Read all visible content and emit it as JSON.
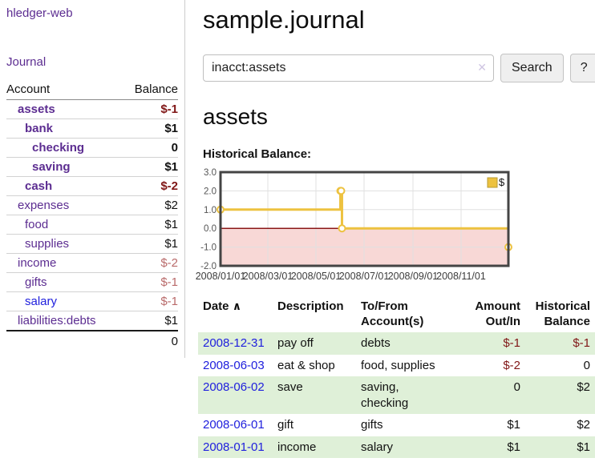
{
  "colors": {
    "purple_link": "#5c2d91",
    "blue_link": "#2020dd",
    "negative_strong": "#801717",
    "negative_dim": "#b96a6a",
    "row_green": "#dff0d8",
    "chart_gold": "#edc240",
    "chart_negative_region": "#f8d8d6",
    "chart_zero_line": "#8b1717"
  },
  "app": {
    "brand": "hledger-web",
    "nav_journal": "Journal"
  },
  "sidebar": {
    "col_account": "Account",
    "col_balance": "Balance",
    "accounts": [
      {
        "name": "assets",
        "depth": 0,
        "balance": "$-1",
        "bold": true,
        "neg": "strong",
        "blue": false
      },
      {
        "name": "bank",
        "depth": 1,
        "balance": "$1",
        "bold": true,
        "neg": "none",
        "blue": false
      },
      {
        "name": "checking",
        "depth": 2,
        "balance": "0",
        "bold": true,
        "neg": "none",
        "blue": false
      },
      {
        "name": "saving",
        "depth": 2,
        "balance": "$1",
        "bold": true,
        "neg": "none",
        "blue": false
      },
      {
        "name": "cash",
        "depth": 1,
        "balance": "$-2",
        "bold": true,
        "neg": "strong",
        "blue": false
      },
      {
        "name": "expenses",
        "depth": 0,
        "balance": "$2",
        "bold": false,
        "neg": "none",
        "blue": false
      },
      {
        "name": "food",
        "depth": 1,
        "balance": "$1",
        "bold": false,
        "neg": "none",
        "blue": false
      },
      {
        "name": "supplies",
        "depth": 1,
        "balance": "$1",
        "bold": false,
        "neg": "none",
        "blue": false
      },
      {
        "name": "income",
        "depth": 0,
        "balance": "$-2",
        "bold": false,
        "neg": "dim",
        "blue": false
      },
      {
        "name": "gifts",
        "depth": 1,
        "balance": "$-1",
        "bold": false,
        "neg": "dim",
        "blue": false
      },
      {
        "name": "salary",
        "depth": 1,
        "balance": "$-1",
        "bold": false,
        "neg": "dim",
        "blue": true
      },
      {
        "name": "liabilities:debts",
        "depth": 0,
        "balance": "$1",
        "bold": false,
        "neg": "none",
        "blue": false
      }
    ],
    "total": "0"
  },
  "header": {
    "title": "sample.journal"
  },
  "search": {
    "value": "inacct:assets",
    "clear_icon": "✕",
    "button_label": "Search",
    "help_label": "?"
  },
  "account_page": {
    "heading": "assets",
    "chart_title": "Historical Balance:"
  },
  "chart_data": {
    "type": "line",
    "step": true,
    "title": "Historical Balance:",
    "legend": "$",
    "legend_position": "top-right",
    "grid": true,
    "ylim": [
      -2,
      3
    ],
    "yticks": [
      3.0,
      2.0,
      1.0,
      0.0,
      -1.0,
      -2.0
    ],
    "ytick_labels": [
      "3.0",
      "2.0",
      "1.0",
      "0.0",
      "-1.0",
      "-2.0"
    ],
    "xrange": [
      "2008-01-01",
      "2008-12-31"
    ],
    "xtick_labels": [
      "2008/01/01",
      "2008/03/01",
      "2008/05/01",
      "2008/07/01",
      "2008/09/01",
      "2008/11/01"
    ],
    "series": [
      {
        "name": "$",
        "color": "#edc240",
        "points": [
          {
            "date": "2008-01-01",
            "value": 1
          },
          {
            "date": "2008-06-01",
            "value": 2
          },
          {
            "date": "2008-06-02",
            "value": 2
          },
          {
            "date": "2008-06-03",
            "value": 0
          },
          {
            "date": "2008-12-31",
            "value": -1
          }
        ]
      }
    ],
    "negative_region_color": "#f8d8d6",
    "zero_line_color": "#8b1717"
  },
  "register": {
    "headers": {
      "date": "Date",
      "sort_icon": "∧",
      "description": "Description",
      "accounts": "To/From\nAccount(s)",
      "amount": "Amount\nOut/In",
      "balance": "Historical\nBalance"
    },
    "rows": [
      {
        "date": "2008-12-31",
        "description": "pay off",
        "accounts": "debts",
        "amount": "$-1",
        "amount_neg": true,
        "balance": "$-1",
        "balance_neg": true,
        "green": true
      },
      {
        "date": "2008-06-03",
        "description": "eat & shop",
        "accounts": "food, supplies",
        "amount": "$-2",
        "amount_neg": true,
        "balance": "0",
        "balance_neg": false,
        "green": false
      },
      {
        "date": "2008-06-02",
        "description": "save",
        "accounts": "saving,\nchecking",
        "amount": "0",
        "amount_neg": false,
        "balance": "$2",
        "balance_neg": false,
        "green": true
      },
      {
        "date": "2008-06-01",
        "description": "gift",
        "accounts": "gifts",
        "amount": "$1",
        "amount_neg": false,
        "balance": "$2",
        "balance_neg": false,
        "green": false
      },
      {
        "date": "2008-01-01",
        "description": "income",
        "accounts": "salary",
        "amount": "$1",
        "amount_neg": false,
        "balance": "$1",
        "balance_neg": false,
        "green": true
      }
    ]
  }
}
